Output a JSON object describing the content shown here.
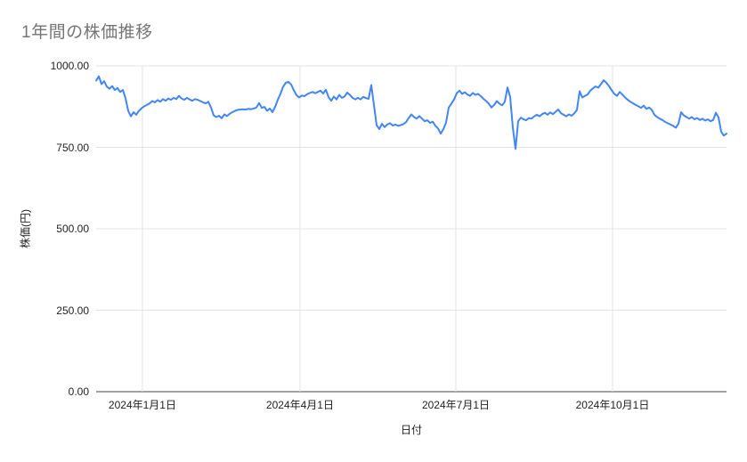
{
  "title": "1年間の株価推移",
  "axes": {
    "x_title": "日付",
    "y_title": "株価(円)"
  },
  "colors": {
    "series_line": "#4285f4",
    "gridline": "#e3e3e3",
    "axis_baseline": "#424242",
    "title_text": "#757575",
    "tick_text": "#1f1f1f",
    "background": "#ffffff"
  },
  "chart_data": {
    "type": "line",
    "title": "1年間の株価推移",
    "xlabel": "日付",
    "ylabel": "株価(円)",
    "ylim": [
      0,
      1000
    ],
    "grid": true,
    "legend": "none",
    "y_ticks": [
      {
        "label": "0.00",
        "value": 0
      },
      {
        "label": "250.00",
        "value": 250
      },
      {
        "label": "500.00",
        "value": 500
      },
      {
        "label": "750.00",
        "value": 750
      },
      {
        "label": "1000.00",
        "value": 1000
      }
    ],
    "x_ticks": [
      {
        "label": "2024年1月1日",
        "pos": 0.0734
      },
      {
        "label": "2024年4月1日",
        "pos": 0.3234
      },
      {
        "label": "2024年7月1日",
        "pos": 0.5706
      },
      {
        "label": "2024年10月1日",
        "pos": 0.8192
      }
    ],
    "x_range_note": "daily stock prices, approx 2023-12-05 to 2024-12-06, evenly spaced",
    "series": [
      {
        "name": "株価",
        "color": "#4285f4",
        "values": [
          955,
          968,
          944,
          953,
          936,
          930,
          938,
          926,
          932,
          920,
          926,
          900,
          862,
          845,
          858,
          850,
          862,
          870,
          876,
          880,
          885,
          892,
          888,
          895,
          890,
          898,
          893,
          900,
          896,
          902,
          898,
          908,
          900,
          896,
          902,
          897,
          893,
          898,
          896,
          892,
          888,
          885,
          890,
          872,
          848,
          843,
          847,
          839,
          851,
          846,
          853,
          858,
          862,
          865,
          866,
          867,
          866,
          868,
          867,
          869,
          872,
          886,
          871,
          874,
          862,
          869,
          858,
          874,
          896,
          914,
          936,
          948,
          951,
          943,
          925,
          910,
          903,
          909,
          907,
          913,
          917,
          920,
          916,
          920,
          924,
          915,
          927,
          904,
          893,
          906,
          897,
          911,
          902,
          906,
          918,
          911,
          902,
          897,
          902,
          897,
          905,
          901,
          899,
          941,
          880,
          818,
          806,
          822,
          812,
          820,
          824,
          817,
          820,
          816,
          818,
          821,
          827,
          840,
          851,
          843,
          838,
          846,
          838,
          830,
          833,
          825,
          829,
          816,
          808,
          792,
          806,
          826,
          872,
          884,
          897,
          916,
          924,
          914,
          919,
          912,
          908,
          917,
          911,
          914,
          907,
          899,
          892,
          884,
          872,
          880,
          892,
          884,
          879,
          890,
          934,
          905,
          810,
          745,
          830,
          841,
          836,
          833,
          840,
          838,
          845,
          850,
          845,
          852,
          856,
          850,
          857,
          852,
          859,
          866,
          855,
          850,
          845,
          851,
          847,
          854,
          865,
          922,
          903,
          908,
          912,
          924,
          931,
          937,
          933,
          944,
          956,
          948,
          938,
          925,
          914,
          908,
          920,
          912,
          903,
          896,
          890,
          885,
          880,
          876,
          871,
          878,
          868,
          872,
          865,
          850,
          843,
          838,
          834,
          828,
          824,
          820,
          816,
          810,
          822,
          858,
          848,
          843,
          838,
          843,
          836,
          840,
          834,
          838,
          832,
          836,
          830,
          834,
          856,
          842,
          798,
          786,
          792
        ]
      }
    ]
  }
}
